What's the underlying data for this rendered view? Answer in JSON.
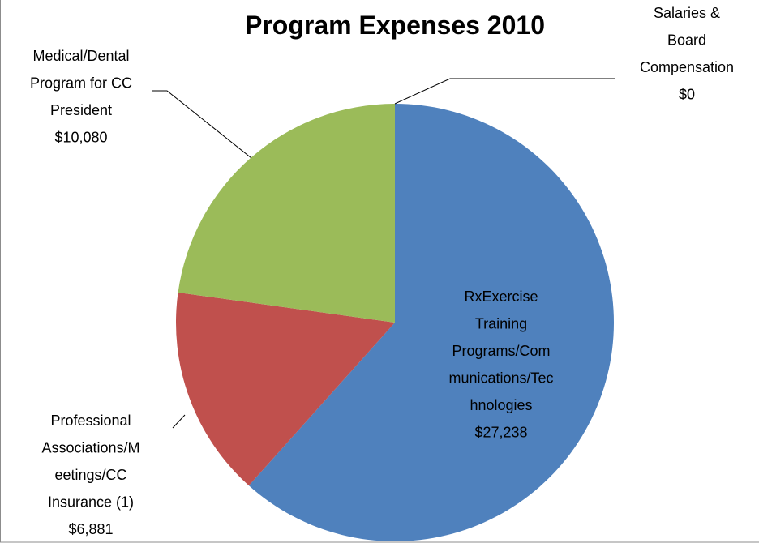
{
  "chart_data": {
    "type": "pie",
    "title": "Program Expenses 2010",
    "categories": [
      "RxExercise Training Programs/Communications/Technologies",
      "Professional Associations/Meetings/CC Insurance (1)",
      "Medical/Dental Program for CC President",
      "Salaries & Board Compensation"
    ],
    "values": [
      27238,
      6881,
      10080,
      0
    ],
    "value_labels": [
      "$27,238",
      "$6,881",
      "$10,080",
      "$0"
    ],
    "colors": [
      "#4f81bd",
      "#c0504d",
      "#9bbb59",
      "#8064a2"
    ]
  }
}
